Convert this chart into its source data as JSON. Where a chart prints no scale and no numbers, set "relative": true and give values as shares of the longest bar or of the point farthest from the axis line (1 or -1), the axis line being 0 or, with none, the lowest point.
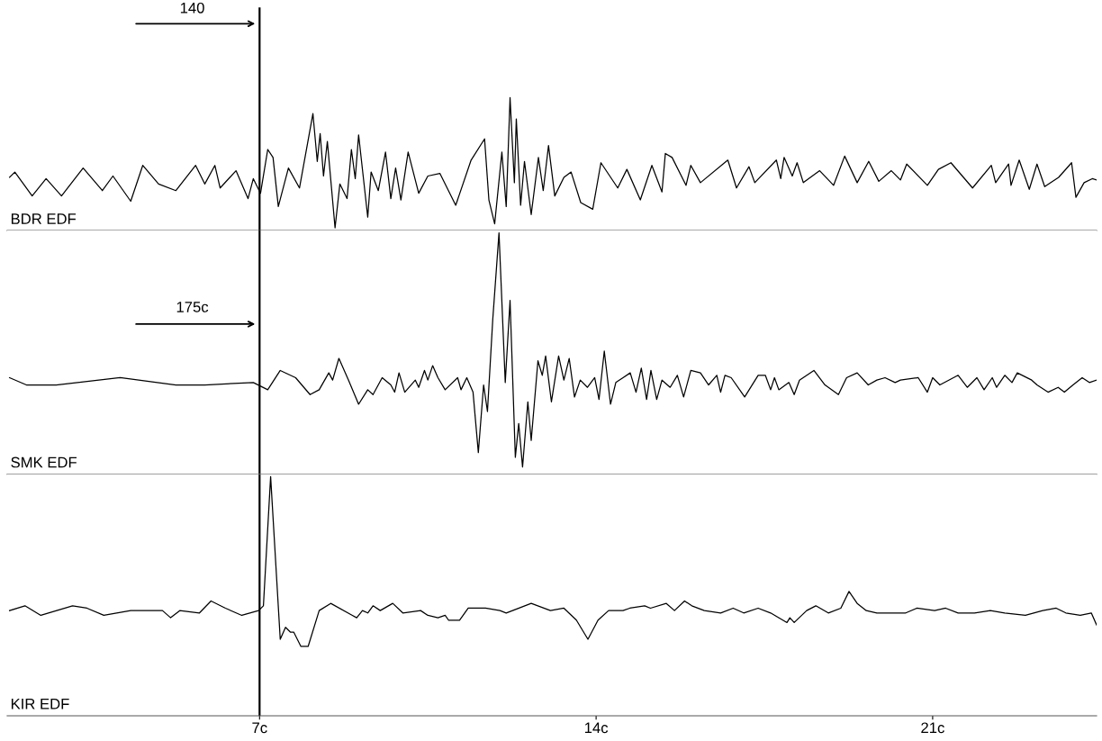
{
  "chart_data": [
    {
      "type": "line",
      "relative": true,
      "xlim": [
        1.75,
        24.41
      ],
      "tick_labels": false,
      "x": [
        1.8,
        1.91,
        2.27,
        2.56,
        2.88,
        3.33,
        3.73,
        3.95,
        4.32,
        4.57,
        4.9,
        5.26,
        5.67,
        5.86,
        6.07,
        6.18,
        6.51,
        6.76,
        6.87,
        7.02,
        7.17,
        7.28,
        7.39,
        7.6,
        7.83,
        8.11,
        8.2,
        8.26,
        8.33,
        8.41,
        8.57,
        8.67,
        8.82,
        8.91,
        8.99,
        9.06,
        9.25,
        9.32,
        9.47,
        9.62,
        9.73,
        9.83,
        9.94,
        10.09,
        10.31,
        10.5,
        10.75,
        11.08,
        11.4,
        11.68,
        11.77,
        11.89,
        12.04,
        12.13,
        12.21,
        12.3,
        12.34,
        12.43,
        12.51,
        12.65,
        12.8,
        12.9,
        13.01,
        13.14,
        13.33,
        13.48,
        13.68,
        13.93,
        14.1,
        14.45,
        14.64,
        14.92,
        15.16,
        15.37,
        15.44,
        15.58,
        15.87,
        15.97,
        16.17,
        16.74,
        16.92,
        17.18,
        17.3,
        17.75,
        17.84,
        17.91,
        18.08,
        18.18,
        18.31,
        18.65,
        18.94,
        19.17,
        19.43,
        19.67,
        19.88,
        20.14,
        20.33,
        20.46,
        20.89,
        21.12,
        21.38,
        21.83,
        22.22,
        22.31,
        22.58,
        22.63,
        22.8,
        23.01,
        23.17,
        23.33,
        23.62,
        23.89,
        23.98,
        24.15,
        24.32,
        24.41
      ],
      "series": [
        {
          "name": "BDR EDF",
          "color": "#000000",
          "values": [
            0.4,
            0.44,
            0.26,
            0.39,
            0.26,
            0.47,
            0.3,
            0.41,
            0.22,
            0.49,
            0.35,
            0.3,
            0.49,
            0.35,
            0.49,
            0.32,
            0.45,
            0.24,
            0.39,
            0.28,
            0.61,
            0.55,
            0.18,
            0.47,
            0.32,
            0.88,
            0.52,
            0.73,
            0.41,
            0.67,
            0.02,
            0.35,
            0.24,
            0.61,
            0.39,
            0.72,
            0.1,
            0.44,
            0.3,
            0.59,
            0.24,
            0.47,
            0.23,
            0.59,
            0.28,
            0.41,
            0.43,
            0.19,
            0.53,
            0.69,
            0.23,
            0.05,
            0.59,
            0.18,
            1,
            0.36,
            0.84,
            0.19,
            0.52,
            0.12,
            0.55,
            0.3,
            0.64,
            0.26,
            0.4,
            0.44,
            0.21,
            0.16,
            0.51,
            0.32,
            0.46,
            0.23,
            0.49,
            0.29,
            0.58,
            0.55,
            0.34,
            0.49,
            0.36,
            0.53,
            0.32,
            0.48,
            0.36,
            0.53,
            0.39,
            0.55,
            0.41,
            0.51,
            0.36,
            0.45,
            0.34,
            0.56,
            0.36,
            0.52,
            0.37,
            0.45,
            0.38,
            0.5,
            0.34,
            0.46,
            0.51,
            0.32,
            0.49,
            0.36,
            0.5,
            0.34,
            0.53,
            0.31,
            0.5,
            0.33,
            0.4,
            0.51,
            0.25,
            0.36,
            0.39,
            0.38
          ]
        }
      ],
      "ref_lines": [
        {
          "axis": "x",
          "value": 7,
          "color": "#000000"
        }
      ],
      "annotations": [
        "140"
      ]
    },
    {
      "type": "line",
      "relative": true,
      "xlim": [
        1.75,
        24.41
      ],
      "tick_labels": false,
      "x": [
        1.8,
        2.15,
        2.77,
        4.1,
        5.26,
        5.86,
        6.87,
        7.17,
        7.43,
        7.75,
        8.05,
        8.24,
        8.44,
        8.52,
        8.65,
        8.85,
        9.06,
        9.25,
        9.36,
        9.55,
        9.73,
        9.81,
        9.9,
        10.02,
        10.24,
        10.31,
        10.43,
        10.5,
        10.6,
        10.71,
        10.86,
        11.12,
        11.19,
        11.31,
        11.44,
        11.55,
        11.66,
        11.74,
        11.85,
        11.98,
        12.11,
        12.21,
        12.32,
        12.39,
        12.47,
        12.58,
        12.65,
        12.79,
        12.88,
        12.95,
        13.07,
        13.22,
        13.33,
        13.44,
        13.55,
        13.67,
        13.82,
        13.97,
        14.06,
        14.17,
        14.3,
        14.41,
        14.56,
        14.71,
        14.83,
        14.94,
        15.05,
        15.14,
        15.26,
        15.37,
        15.54,
        15.69,
        15.82,
        15.97,
        16.17,
        16.34,
        16.51,
        16.59,
        16.68,
        16.81,
        17.09,
        17.37,
        17.52,
        17.63,
        17.71,
        17.8,
        18.01,
        18.12,
        18.23,
        18.53,
        18.76,
        19.04,
        19.21,
        19.43,
        19.66,
        19.84,
        20.01,
        20.22,
        20.33,
        20.7,
        20.89,
        21.0,
        21.15,
        21.53,
        21.72,
        21.92,
        22.07,
        22.24,
        22.33,
        22.5,
        22.65,
        22.76,
        23.06,
        23.17,
        23.4,
        23.61,
        23.74,
        23.92,
        24.11,
        24.26,
        24.41
      ],
      "series": [
        {
          "name": "SMK EDF",
          "color": "#000000",
          "values": [
            0.4,
            0.37,
            0.37,
            0.4,
            0.37,
            0.37,
            0.38,
            0.35,
            0.43,
            0.4,
            0.33,
            0.35,
            0.42,
            0.39,
            0.48,
            0.39,
            0.29,
            0.35,
            0.33,
            0.4,
            0.37,
            0.34,
            0.42,
            0.34,
            0.39,
            0.36,
            0.43,
            0.39,
            0.45,
            0.4,
            0.35,
            0.4,
            0.35,
            0.4,
            0.34,
            0.09,
            0.37,
            0.26,
            0.64,
            1,
            0.38,
            0.72,
            0.07,
            0.21,
            0.03,
            0.3,
            0.14,
            0.47,
            0.41,
            0.49,
            0.3,
            0.49,
            0.39,
            0.48,
            0.32,
            0.39,
            0.36,
            0.4,
            0.31,
            0.51,
            0.29,
            0.38,
            0.4,
            0.42,
            0.34,
            0.44,
            0.31,
            0.43,
            0.31,
            0.39,
            0.36,
            0.41,
            0.32,
            0.43,
            0.42,
            0.37,
            0.41,
            0.34,
            0.41,
            0.4,
            0.32,
            0.41,
            0.41,
            0.35,
            0.4,
            0.35,
            0.38,
            0.33,
            0.39,
            0.43,
            0.37,
            0.33,
            0.4,
            0.42,
            0.37,
            0.39,
            0.4,
            0.38,
            0.39,
            0.4,
            0.34,
            0.4,
            0.37,
            0.41,
            0.36,
            0.4,
            0.35,
            0.4,
            0.36,
            0.41,
            0.38,
            0.42,
            0.39,
            0.37,
            0.34,
            0.36,
            0.34,
            0.37,
            0.4,
            0.38,
            0.39
          ]
        }
      ],
      "ref_lines": [
        {
          "axis": "x",
          "value": 7,
          "color": "#000000"
        }
      ],
      "annotations": [
        "175c"
      ]
    },
    {
      "type": "line",
      "relative": true,
      "xlim": [
        1.75,
        24.41
      ],
      "tick_labels": "x",
      "xticks": [
        {
          "value": 7,
          "label": "7c"
        },
        {
          "value": 14,
          "label": "14c"
        },
        {
          "value": 21,
          "label": "21c"
        }
      ],
      "x": [
        1.8,
        2.12,
        2.45,
        3.11,
        3.41,
        3.76,
        4.32,
        4.98,
        5.15,
        5.34,
        5.75,
        5.99,
        6.29,
        6.63,
        6.98,
        7.08,
        7.23,
        7.43,
        7.54,
        7.64,
        7.71,
        7.86,
        8.01,
        8.24,
        8.48,
        8.93,
        9.02,
        9.14,
        9.25,
        9.36,
        9.51,
        9.77,
        9.98,
        10.35,
        10.5,
        10.71,
        10.86,
        10.93,
        11.16,
        11.34,
        11.7,
        12.0,
        12.13,
        12.65,
        13.05,
        13.33,
        13.59,
        13.83,
        14.04,
        14.26,
        14.56,
        14.7,
        15.01,
        15.13,
        15.46,
        15.63,
        15.84,
        15.99,
        16.25,
        16.59,
        16.85,
        17.07,
        17.37,
        17.63,
        17.97,
        18.03,
        18.12,
        18.38,
        18.57,
        18.83,
        19.09,
        19.26,
        19.43,
        19.62,
        19.84,
        20.44,
        20.67,
        21.04,
        21.27,
        21.53,
        21.87,
        22.2,
        22.5,
        22.93,
        23.29,
        23.57,
        23.77,
        24.07,
        24.3,
        24.41
      ],
      "series": [
        {
          "name": "KIR EDF",
          "color": "#000000",
          "values": [
            0.44,
            0.46,
            0.42,
            0.46,
            0.45,
            0.42,
            0.44,
            0.44,
            0.41,
            0.44,
            0.43,
            0.48,
            0.45,
            0.42,
            0.44,
            0.46,
            1,
            0.32,
            0.37,
            0.35,
            0.35,
            0.29,
            0.29,
            0.44,
            0.47,
            0.42,
            0.41,
            0.44,
            0.43,
            0.46,
            0.44,
            0.47,
            0.43,
            0.44,
            0.42,
            0.41,
            0.42,
            0.4,
            0.4,
            0.45,
            0.45,
            0.44,
            0.43,
            0.47,
            0.44,
            0.45,
            0.4,
            0.32,
            0.4,
            0.44,
            0.44,
            0.45,
            0.46,
            0.45,
            0.47,
            0.44,
            0.48,
            0.46,
            0.44,
            0.43,
            0.45,
            0.43,
            0.45,
            0.43,
            0.39,
            0.41,
            0.39,
            0.44,
            0.46,
            0.43,
            0.45,
            0.52,
            0.47,
            0.44,
            0.43,
            0.43,
            0.45,
            0.44,
            0.45,
            0.43,
            0.43,
            0.44,
            0.43,
            0.42,
            0.44,
            0.45,
            0.43,
            0.42,
            0.43,
            0.38
          ]
        }
      ],
      "ref_lines": [
        {
          "axis": "x",
          "value": 7,
          "color": "#000000"
        }
      ]
    }
  ]
}
